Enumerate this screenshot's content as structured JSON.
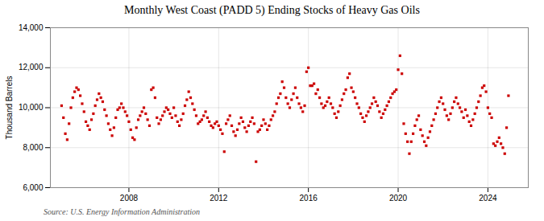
{
  "chart_data": {
    "type": "scatter",
    "title": "Monthly West Coast (PADD 5) Ending Stocks of Heavy Gas Oils",
    "ylabel": "Thousand Barrels",
    "source": "Source: U.S. Energy Information Administration",
    "color": "#cc0000",
    "marker": "square",
    "grid": true,
    "xlim": [
      2004.5,
      2025.8
    ],
    "xticks": [
      2008,
      2012,
      2016,
      2020,
      2024
    ],
    "ylim": [
      6000,
      14000
    ],
    "yticks": [
      {
        "value": 6000,
        "label": "6,000"
      },
      {
        "value": 8000,
        "label": "8,000"
      },
      {
        "value": 10000,
        "label": "10,000"
      },
      {
        "value": 12000,
        "label": "12,000"
      },
      {
        "value": 14000,
        "label": "14,000"
      }
    ],
    "x": [
      2005.0,
      2005.083,
      2005.167,
      2005.25,
      2005.333,
      2005.417,
      2005.5,
      2005.583,
      2005.667,
      2005.75,
      2005.833,
      2005.917,
      2006.0,
      2006.083,
      2006.167,
      2006.25,
      2006.333,
      2006.417,
      2006.5,
      2006.583,
      2006.667,
      2006.75,
      2006.833,
      2006.917,
      2007.0,
      2007.083,
      2007.167,
      2007.25,
      2007.333,
      2007.417,
      2007.5,
      2007.583,
      2007.667,
      2007.75,
      2007.833,
      2007.917,
      2008.0,
      2008.083,
      2008.167,
      2008.25,
      2008.333,
      2008.417,
      2008.5,
      2008.583,
      2008.667,
      2008.75,
      2008.833,
      2008.917,
      2009.0,
      2009.083,
      2009.167,
      2009.25,
      2009.333,
      2009.417,
      2009.5,
      2009.583,
      2009.667,
      2009.75,
      2009.833,
      2009.917,
      2010.0,
      2010.083,
      2010.167,
      2010.25,
      2010.333,
      2010.417,
      2010.5,
      2010.583,
      2010.667,
      2010.75,
      2010.833,
      2010.917,
      2011.0,
      2011.083,
      2011.167,
      2011.25,
      2011.333,
      2011.417,
      2011.5,
      2011.583,
      2011.667,
      2011.75,
      2011.833,
      2011.917,
      2012.0,
      2012.083,
      2012.167,
      2012.25,
      2012.333,
      2012.417,
      2012.5,
      2012.583,
      2012.667,
      2012.75,
      2012.833,
      2012.917,
      2013.0,
      2013.083,
      2013.167,
      2013.25,
      2013.333,
      2013.417,
      2013.5,
      2013.583,
      2013.667,
      2013.75,
      2013.833,
      2013.917,
      2014.0,
      2014.083,
      2014.167,
      2014.25,
      2014.333,
      2014.417,
      2014.5,
      2014.583,
      2014.667,
      2014.75,
      2014.833,
      2014.917,
      2015.0,
      2015.083,
      2015.167,
      2015.25,
      2015.333,
      2015.417,
      2015.5,
      2015.583,
      2015.667,
      2015.75,
      2015.833,
      2015.917,
      2016.0,
      2016.083,
      2016.167,
      2016.25,
      2016.333,
      2016.417,
      2016.5,
      2016.583,
      2016.667,
      2016.75,
      2016.833,
      2016.917,
      2017.0,
      2017.083,
      2017.167,
      2017.25,
      2017.333,
      2017.417,
      2017.5,
      2017.583,
      2017.667,
      2017.75,
      2017.833,
      2017.917,
      2018.0,
      2018.083,
      2018.167,
      2018.25,
      2018.333,
      2018.417,
      2018.5,
      2018.583,
      2018.667,
      2018.75,
      2018.833,
      2018.917,
      2019.0,
      2019.083,
      2019.167,
      2019.25,
      2019.333,
      2019.417,
      2019.5,
      2019.583,
      2019.667,
      2019.75,
      2019.833,
      2019.917,
      2020.0,
      2020.083,
      2020.167,
      2020.25,
      2020.333,
      2020.417,
      2020.5,
      2020.583,
      2020.667,
      2020.75,
      2020.833,
      2020.917,
      2021.0,
      2021.083,
      2021.167,
      2021.25,
      2021.333,
      2021.417,
      2021.5,
      2021.583,
      2021.667,
      2021.75,
      2021.833,
      2021.917,
      2022.0,
      2022.083,
      2022.167,
      2022.25,
      2022.333,
      2022.417,
      2022.5,
      2022.583,
      2022.667,
      2022.75,
      2022.833,
      2022.917,
      2023.0,
      2023.083,
      2023.167,
      2023.25,
      2023.333,
      2023.417,
      2023.5,
      2023.583,
      2023.667,
      2023.75,
      2023.833,
      2023.917,
      2024.0,
      2024.083,
      2024.167,
      2024.25,
      2024.333,
      2024.417,
      2024.5,
      2024.583,
      2024.667,
      2024.75,
      2024.833,
      2024.917
    ],
    "values": [
      10100,
      9500,
      8700,
      8400,
      9200,
      10000,
      10500,
      10800,
      11000,
      10900,
      10600,
      10200,
      9800,
      9300,
      9100,
      8900,
      9400,
      9700,
      10100,
      10400,
      10700,
      10500,
      10300,
      9900,
      9600,
      9200,
      8900,
      8600,
      9000,
      9500,
      9900,
      10000,
      10200,
      10000,
      9800,
      9600,
      9300,
      8900,
      8500,
      8400,
      9000,
      9400,
      9600,
      9800,
      10000,
      9700,
      9400,
      9100,
      10900,
      11000,
      10500,
      9500,
      9200,
      9400,
      9600,
      9800,
      10000,
      9900,
      9700,
      9500,
      10000,
      9600,
      9300,
      9100,
      9400,
      9700,
      10100,
      10400,
      10800,
      10500,
      10200,
      9900,
      9600,
      9200,
      9300,
      9400,
      9600,
      9800,
      9500,
      9300,
      9100,
      9000,
      9200,
      9300,
      9100,
      8900,
      8700,
      7800,
      9200,
      9400,
      9600,
      9100,
      8800,
      8600,
      8900,
      9200,
      9500,
      9300,
      9000,
      8800,
      9100,
      9300,
      9500,
      9200,
      7300,
      8800,
      8900,
      9100,
      9400,
      9200,
      8900,
      9100,
      9400,
      9600,
      9800,
      10200,
      10500,
      10700,
      11300,
      11000,
      10500,
      10200,
      10000,
      10400,
      10700,
      11000,
      10500,
      10200,
      10000,
      9800,
      10100,
      11800,
      12000,
      11100,
      11100,
      11200,
      10700,
      10900,
      10500,
      10200,
      10000,
      10100,
      10300,
      10500,
      10200,
      10000,
      9700,
      9500,
      9800,
      10100,
      10400,
      10700,
      10900,
      11500,
      11700,
      11000,
      10800,
      10500,
      10200,
      10000,
      9700,
      9500,
      9300,
      9600,
      9800,
      10000,
      10200,
      10500,
      10300,
      10100,
      9800,
      9500,
      9700,
      9900,
      10100,
      10300,
      10500,
      10700,
      10800,
      10900,
      11900,
      12600,
      11700,
      9200,
      8700,
      8300,
      7700,
      8300,
      8700,
      9100,
      9400,
      9600,
      8900,
      8600,
      8300,
      8100,
      8500,
      8800,
      9100,
      9400,
      9700,
      10000,
      10300,
      10500,
      10200,
      9900,
      9600,
      9400,
      9700,
      10000,
      10300,
      10500,
      10200,
      10000,
      9800,
      9500,
      9900,
      9600,
      9300,
      9100,
      9400,
      9700,
      10000,
      10300,
      10600,
      11000,
      11100,
      10800,
      10000,
      9700,
      9500,
      8200,
      8100,
      8300,
      8500,
      8200,
      8000,
      7700,
      9000,
      10600
    ]
  }
}
